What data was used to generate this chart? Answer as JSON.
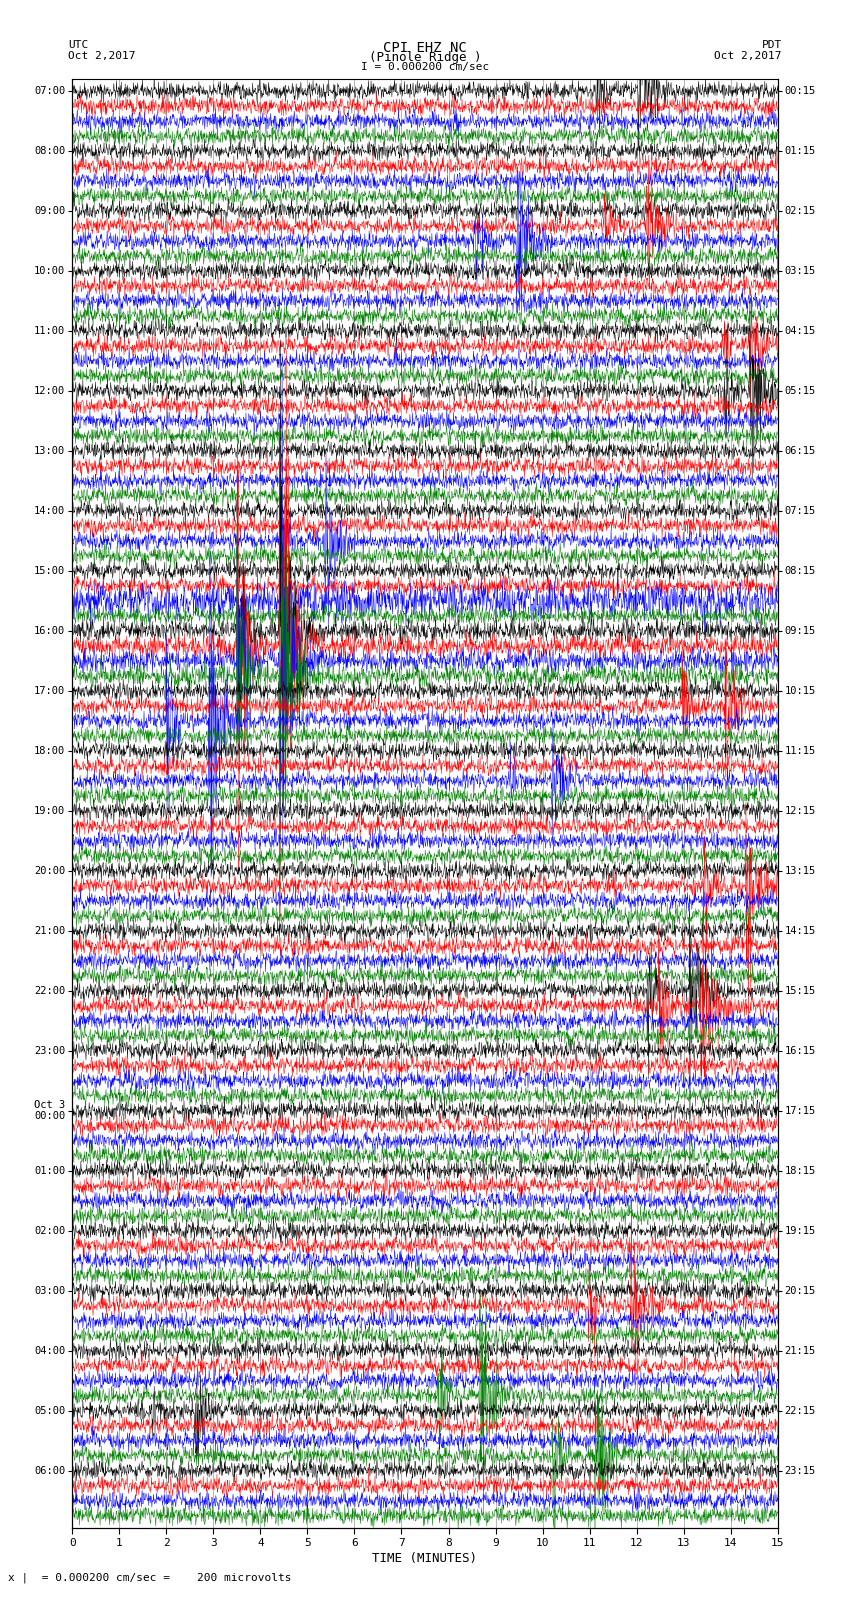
{
  "title_line1": "CPI EHZ NC",
  "title_line2": "(Pinole Ridge )",
  "scale_label": "I = 0.000200 cm/sec",
  "left_label": "UTC",
  "left_date": "Oct 2,2017",
  "right_label": "PDT",
  "right_date": "Oct 2,2017",
  "bottom_label": "TIME (MINUTES)",
  "bottom_note": "x |  = 0.000200 cm/sec =    200 microvolts",
  "utc_times_major": [
    "07:00",
    "08:00",
    "09:00",
    "10:00",
    "11:00",
    "12:00",
    "13:00",
    "14:00",
    "15:00",
    "16:00",
    "17:00",
    "18:00",
    "19:00",
    "20:00",
    "21:00",
    "22:00",
    "23:00",
    "Oct 3\n00:00",
    "01:00",
    "02:00",
    "03:00",
    "04:00",
    "05:00",
    "06:00"
  ],
  "pdt_times_major": [
    "00:15",
    "01:15",
    "02:15",
    "03:15",
    "04:15",
    "05:15",
    "06:15",
    "07:15",
    "08:15",
    "09:15",
    "10:15",
    "11:15",
    "12:15",
    "13:15",
    "14:15",
    "15:15",
    "16:15",
    "17:15",
    "18:15",
    "19:15",
    "20:15",
    "21:15",
    "22:15",
    "23:15"
  ],
  "colors": [
    "black",
    "red",
    "blue",
    "green"
  ],
  "n_groups": 24,
  "traces_per_group": 4,
  "n_cols": 15,
  "x_ticks": [
    0,
    1,
    2,
    3,
    4,
    5,
    6,
    7,
    8,
    9,
    10,
    11,
    12,
    13,
    14,
    15
  ],
  "background": "white",
  "grid_color": "#999999",
  "amplitude_base": 0.28,
  "figsize": [
    8.5,
    16.13
  ],
  "dpi": 100
}
